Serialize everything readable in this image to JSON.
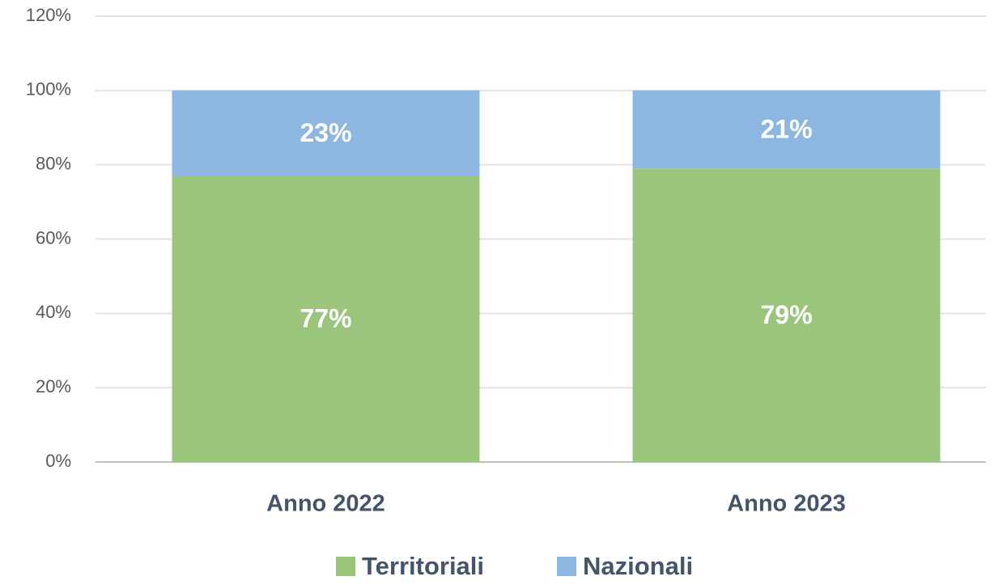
{
  "chart_data": {
    "type": "stacked_bar",
    "categories": [
      "Anno 2022",
      "Anno 2023"
    ],
    "series": [
      {
        "name": "Territoriali",
        "color": "#9bc47c",
        "values": [
          77,
          79
        ],
        "value_labels": [
          "77%",
          "79%"
        ]
      },
      {
        "name": "Nazionali",
        "color": "#8db6e0",
        "values": [
          23,
          21
        ],
        "value_labels": [
          "23%",
          "21%"
        ]
      }
    ],
    "ylim": [
      0,
      120
    ],
    "yticks": [
      {
        "value": 0,
        "label": "0%"
      },
      {
        "value": 20,
        "label": "20%"
      },
      {
        "value": 40,
        "label": "40%"
      },
      {
        "value": 60,
        "label": "60%"
      },
      {
        "value": 80,
        "label": "80%"
      },
      {
        "value": 100,
        "label": "100%"
      },
      {
        "value": 120,
        "label": "120%"
      }
    ],
    "grid": true,
    "legend": "bottom"
  }
}
